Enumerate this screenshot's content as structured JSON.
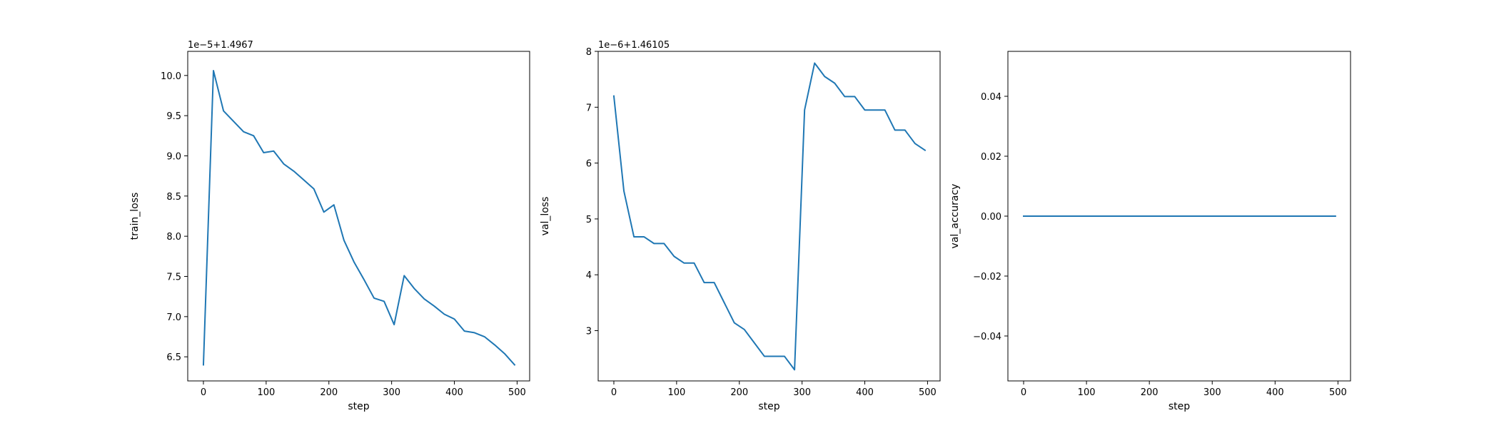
{
  "chart_data": [
    {
      "type": "line",
      "xlabel": "step",
      "ylabel": "train_loss",
      "offset_text": "1e−5+1.4967",
      "xlim": [
        -25,
        520
      ],
      "ylim": [
        6.2,
        10.3
      ],
      "xticks": [
        0,
        100,
        200,
        300,
        400,
        500
      ],
      "xtick_labels": [
        "0",
        "100",
        "200",
        "300",
        "400",
        "500"
      ],
      "yticks": [
        6.5,
        7.0,
        7.5,
        8.0,
        8.5,
        9.0,
        9.5,
        10.0
      ],
      "ytick_labels": [
        "6.5",
        "7.0",
        "7.5",
        "8.0",
        "8.5",
        "9.0",
        "9.5",
        "10.0"
      ],
      "grid": false,
      "series": [
        {
          "color": "#1f77b4",
          "x": [
            0,
            16,
            32,
            48,
            64,
            80,
            96,
            112,
            128,
            144,
            160,
            176,
            192,
            208,
            224,
            240,
            256,
            272,
            288,
            304,
            320,
            336,
            352,
            368,
            384,
            400,
            416,
            432,
            448,
            464,
            480,
            496
          ],
          "y": [
            6.4,
            10.06,
            9.56,
            9.43,
            9.3,
            9.25,
            9.04,
            9.06,
            8.9,
            8.81,
            8.7,
            8.59,
            8.3,
            8.39,
            7.95,
            7.68,
            7.46,
            7.23,
            7.19,
            6.9,
            7.51,
            7.35,
            7.22,
            7.13,
            7.03,
            6.97,
            6.82,
            6.8,
            6.75,
            6.65,
            6.54,
            6.4
          ]
        }
      ]
    },
    {
      "type": "line",
      "xlabel": "step",
      "ylabel": "val_loss",
      "offset_text": "1e−6+1.46105",
      "xlim": [
        -25,
        520
      ],
      "ylim": [
        2.1,
        8.0
      ],
      "xticks": [
        0,
        100,
        200,
        300,
        400,
        500
      ],
      "xtick_labels": [
        "0",
        "100",
        "200",
        "300",
        "400",
        "500"
      ],
      "yticks": [
        3,
        4,
        5,
        6,
        7,
        8
      ],
      "ytick_labels": [
        "3",
        "4",
        "5",
        "6",
        "7",
        "8"
      ],
      "grid": false,
      "series": [
        {
          "color": "#1f77b4",
          "x": [
            0,
            16,
            32,
            48,
            64,
            80,
            96,
            112,
            128,
            144,
            160,
            176,
            192,
            208,
            224,
            240,
            256,
            272,
            288,
            304,
            320,
            336,
            352,
            368,
            384,
            400,
            416,
            432,
            448,
            464,
            480,
            496
          ],
          "y": [
            7.2,
            5.5,
            4.68,
            4.68,
            4.56,
            4.56,
            4.33,
            4.21,
            4.21,
            3.86,
            3.86,
            3.5,
            3.14,
            3.02,
            2.78,
            2.54,
            2.54,
            2.54,
            2.3,
            6.95,
            7.79,
            7.55,
            7.43,
            7.19,
            7.19,
            6.95,
            6.95,
            6.95,
            6.59,
            6.59,
            6.35,
            6.23
          ]
        }
      ]
    },
    {
      "type": "line",
      "xlabel": "step",
      "ylabel": "val_accuracy",
      "xlim": [
        -25,
        520
      ],
      "ylim": [
        -0.055,
        0.055
      ],
      "xticks": [
        0,
        100,
        200,
        300,
        400,
        500
      ],
      "xtick_labels": [
        "0",
        "100",
        "200",
        "300",
        "400",
        "500"
      ],
      "yticks": [
        -0.04,
        -0.02,
        0.0,
        0.02,
        0.04
      ],
      "ytick_labels": [
        "−0.04",
        "−0.02",
        "0.00",
        "0.02",
        "0.04"
      ],
      "grid": false,
      "series": [
        {
          "color": "#1f77b4",
          "x": [
            0,
            16,
            32,
            48,
            64,
            80,
            96,
            112,
            128,
            144,
            160,
            176,
            192,
            208,
            224,
            240,
            256,
            272,
            288,
            304,
            320,
            336,
            352,
            368,
            384,
            400,
            416,
            432,
            448,
            464,
            480,
            496
          ],
          "y": [
            0,
            0,
            0,
            0,
            0,
            0,
            0,
            0,
            0,
            0,
            0,
            0,
            0,
            0,
            0,
            0,
            0,
            0,
            0,
            0,
            0,
            0,
            0,
            0,
            0,
            0,
            0,
            0,
            0,
            0,
            0,
            0
          ]
        }
      ]
    }
  ]
}
